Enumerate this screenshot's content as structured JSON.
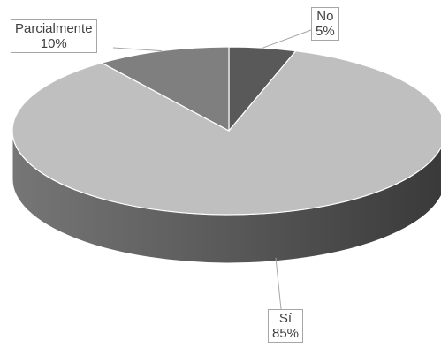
{
  "chart_data": {
    "type": "pie",
    "style": "3d",
    "slices": [
      {
        "label": "No",
        "value": 5,
        "value_label": "5%",
        "color": "#595959"
      },
      {
        "label": "Sí",
        "value": 85,
        "value_label": "85%",
        "color": "#bfbfbf"
      },
      {
        "label": "Parcialmente",
        "value": 10,
        "value_label": "10%",
        "color": "#7f7f7f"
      }
    ],
    "title": "",
    "legend": "none"
  }
}
